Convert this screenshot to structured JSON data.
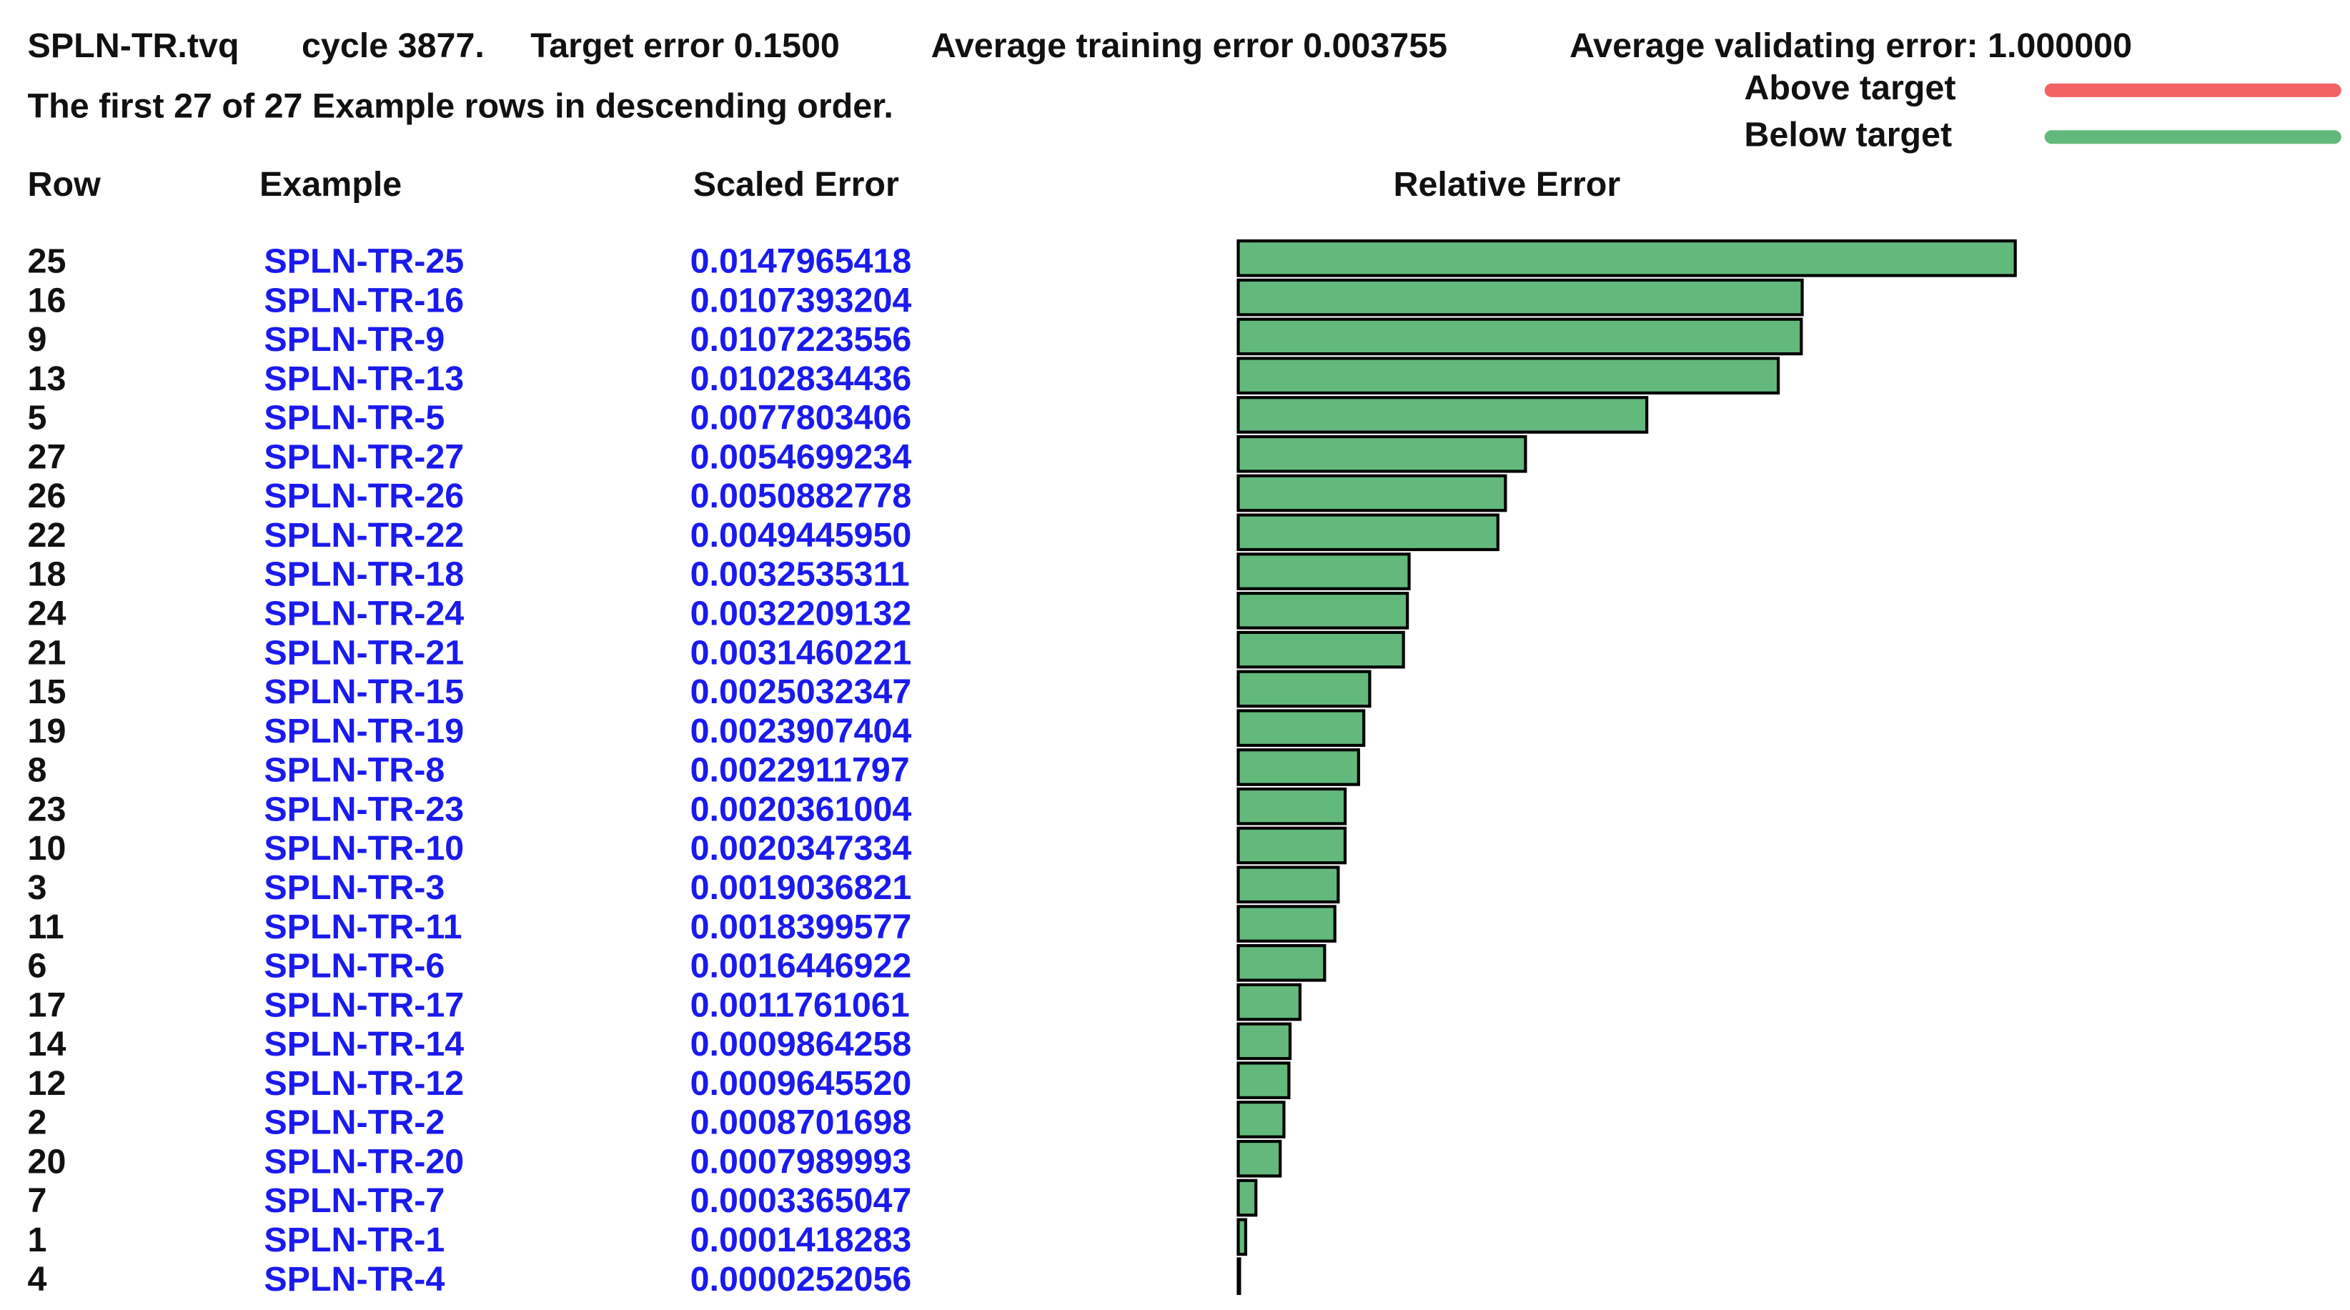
{
  "header": {
    "file": "SPLN-TR.tvq",
    "cycle": "cycle 3877.",
    "target": "Target error 0.1500",
    "training": "Average training error 0.003755",
    "validating": "Average validating error: 1.000000",
    "subtitle": "The first 27 of 27 Example rows in descending order."
  },
  "legend": {
    "above": {
      "label": "Above target",
      "color": "#f26363"
    },
    "below": {
      "label": "Below target",
      "color": "#62b97b"
    }
  },
  "columns": [
    "Row",
    "Example",
    "Scaled Error",
    "Relative Error"
  ],
  "rows": [
    [
      25,
      "SPLN-TR-25",
      "0.0147965418"
    ],
    [
      16,
      "SPLN-TR-16",
      "0.0107393204"
    ],
    [
      9,
      "SPLN-TR-9",
      "0.0107223556"
    ],
    [
      13,
      "SPLN-TR-13",
      "0.0102834436"
    ],
    [
      5,
      "SPLN-TR-5",
      "0.0077803406"
    ],
    [
      27,
      "SPLN-TR-27",
      "0.0054699234"
    ],
    [
      26,
      "SPLN-TR-26",
      "0.0050882778"
    ],
    [
      22,
      "SPLN-TR-22",
      "0.0049445950"
    ],
    [
      18,
      "SPLN-TR-18",
      "0.0032535311"
    ],
    [
      24,
      "SPLN-TR-24",
      "0.0032209132"
    ],
    [
      21,
      "SPLN-TR-21",
      "0.0031460221"
    ],
    [
      15,
      "SPLN-TR-15",
      "0.0025032347"
    ],
    [
      19,
      "SPLN-TR-19",
      "0.0023907404"
    ],
    [
      8,
      "SPLN-TR-8",
      "0.0022911797"
    ],
    [
      23,
      "SPLN-TR-23",
      "0.0020361004"
    ],
    [
      10,
      "SPLN-TR-10",
      "0.0020347334"
    ],
    [
      3,
      "SPLN-TR-3",
      "0.0019036821"
    ],
    [
      11,
      "SPLN-TR-11",
      "0.0018399577"
    ],
    [
      6,
      "SPLN-TR-6",
      "0.0016446922"
    ],
    [
      17,
      "SPLN-TR-17",
      "0.0011761061"
    ],
    [
      14,
      "SPLN-TR-14",
      "0.0009864258"
    ],
    [
      12,
      "SPLN-TR-12",
      "0.0009645520"
    ],
    [
      2,
      "SPLN-TR-2",
      "0.0008701698"
    ],
    [
      20,
      "SPLN-TR-20",
      "0.0007989993"
    ],
    [
      7,
      "SPLN-TR-7",
      "0.0003365047"
    ],
    [
      1,
      "SPLN-TR-1",
      "0.0001418283"
    ],
    [
      4,
      "SPLN-TR-4",
      "0.0000252056"
    ]
  ]
}
